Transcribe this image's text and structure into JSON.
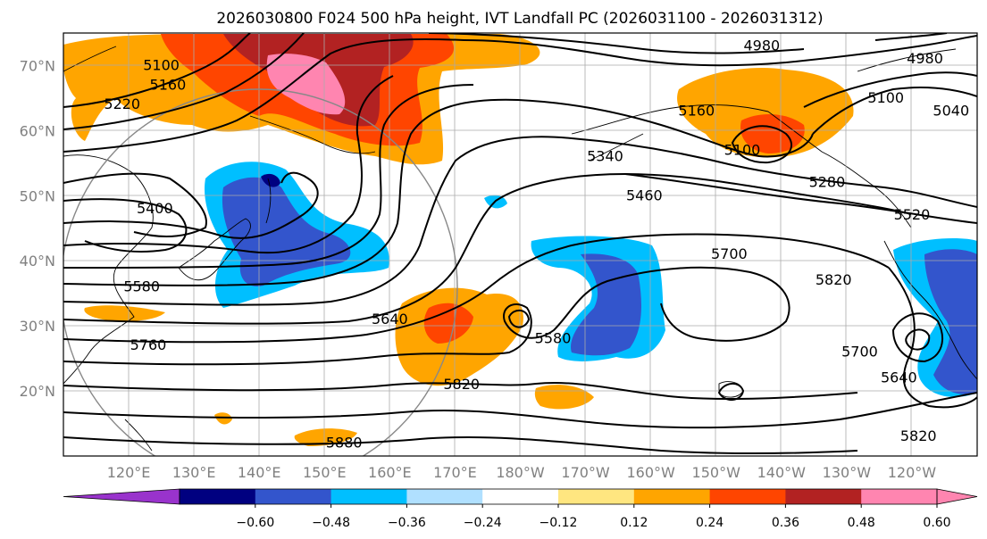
{
  "chart_data": {
    "type": "contour-map",
    "title": "2026030800 F024 500 hPa height, IVT Landfall PC (2026031100 - 2026031312)",
    "projection": "PlateCarree",
    "extent": {
      "lon_min": 110,
      "lon_max": 250,
      "lat_min": 10,
      "lat_max": 75
    },
    "x_ticks": [
      "120°E",
      "130°E",
      "140°E",
      "150°E",
      "160°E",
      "170°E",
      "180°W",
      "170°W",
      "160°W",
      "150°W",
      "140°W",
      "130°W",
      "120°W"
    ],
    "x_tick_lons": [
      120,
      130,
      140,
      150,
      160,
      170,
      180,
      190,
      200,
      210,
      220,
      230,
      240
    ],
    "y_ticks": [
      "20°N",
      "30°N",
      "40°N",
      "50°N",
      "60°N",
      "70°N"
    ],
    "y_tick_lats": [
      20,
      30,
      40,
      50,
      60,
      70
    ],
    "grid": true,
    "contour_labels": [
      {
        "text": "5100",
        "lon": 125,
        "lat": 70
      },
      {
        "text": "5160",
        "lon": 126,
        "lat": 67
      },
      {
        "text": "5220",
        "lon": 119,
        "lat": 64
      },
      {
        "text": "4980",
        "lon": 217,
        "lat": 73
      },
      {
        "text": "4980",
        "lon": 242,
        "lat": 71
      },
      {
        "text": "5040",
        "lon": 246,
        "lat": 63
      },
      {
        "text": "5100",
        "lon": 236,
        "lat": 65
      },
      {
        "text": "5100",
        "lon": 214,
        "lat": 57
      },
      {
        "text": "5160",
        "lon": 207,
        "lat": 63
      },
      {
        "text": "5340",
        "lon": 193,
        "lat": 56
      },
      {
        "text": "5280",
        "lon": 227,
        "lat": 52
      },
      {
        "text": "5520",
        "lon": 240,
        "lat": 47
      },
      {
        "text": "5400",
        "lon": 124,
        "lat": 48
      },
      {
        "text": "5460",
        "lon": 199,
        "lat": 50
      },
      {
        "text": "5700",
        "lon": 212,
        "lat": 41
      },
      {
        "text": "5820",
        "lon": 228,
        "lat": 37
      },
      {
        "text": "5580",
        "lon": 122,
        "lat": 36
      },
      {
        "text": "5640",
        "lon": 160,
        "lat": 31
      },
      {
        "text": "5760",
        "lon": 123,
        "lat": 27
      },
      {
        "text": "5580",
        "lon": 185,
        "lat": 28
      },
      {
        "text": "5820",
        "lon": 171,
        "lat": 21
      },
      {
        "text": "5880",
        "lon": 153,
        "lat": 12
      },
      {
        "text": "5700",
        "lon": 232,
        "lat": 26
      },
      {
        "text": "5640",
        "lon": 238,
        "lat": 22
      },
      {
        "text": "5820",
        "lon": 241,
        "lat": 13
      }
    ],
    "shading_legend": {
      "colors": [
        "#9933cc",
        "#000080",
        "#3355cc",
        "#00bfff",
        "#b0e0ff",
        "#ffffff",
        "#ffe680",
        "#ffa500",
        "#ff4500",
        "#b22222",
        "#ff85b0",
        "#ff85b0"
      ],
      "ticks": [
        "−0.60",
        "−0.48",
        "−0.36",
        "−0.24",
        "−0.12",
        "0.12",
        "0.24",
        "0.36",
        "0.48",
        "0.60"
      ],
      "extend": "both"
    }
  }
}
